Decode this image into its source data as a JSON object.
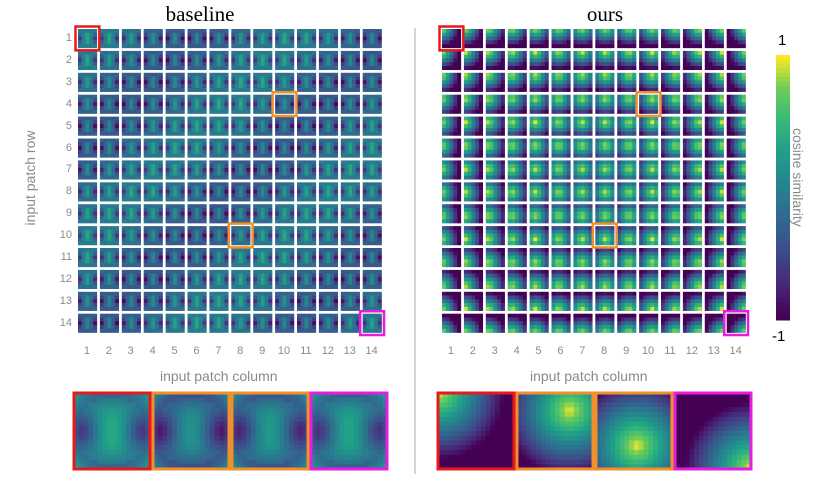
{
  "panels": [
    {
      "title": "baseline",
      "xlabel": "input patch column",
      "ylabel": "input patch row",
      "style": "baseline"
    },
    {
      "title": "ours",
      "xlabel": "input patch column",
      "ylabel": "",
      "style": "ours"
    }
  ],
  "ticks": [
    "1",
    "2",
    "3",
    "4",
    "5",
    "6",
    "7",
    "8",
    "9",
    "10",
    "11",
    "12",
    "13",
    "14"
  ],
  "highlights": [
    {
      "row": 1,
      "col": 1,
      "color": "#e8191c"
    },
    {
      "row": 4,
      "col": 10,
      "color": "#f0902a"
    },
    {
      "row": 10,
      "col": 8,
      "color": "#f0902a"
    },
    {
      "row": 14,
      "col": 14,
      "color": "#e81ce0"
    }
  ],
  "colorbar": {
    "title": "cosine similarity",
    "max_label": "1",
    "min_label": "-1",
    "colors": [
      "#fde725",
      "#b5de2b",
      "#6ece58",
      "#35b779",
      "#1f9e89",
      "#26828e",
      "#31688e",
      "#3e4989",
      "#482878",
      "#440154"
    ]
  },
  "chart_data": {
    "type": "heatmap",
    "grid_rows": 14,
    "grid_cols": 14,
    "value_range": [
      -1,
      1
    ],
    "colormap": "viridis"
  }
}
